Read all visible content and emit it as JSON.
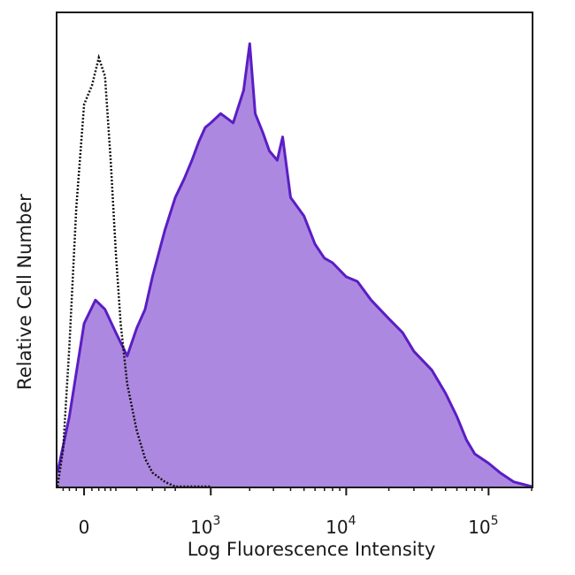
{
  "chart_data": {
    "type": "area",
    "title": "",
    "xlabel": "Log Fluorescence Intensity",
    "ylabel": "Relative Cell Number",
    "x_scale": "biexponential",
    "xlim": [
      -80,
      200000
    ],
    "ylim": [
      0,
      100
    ],
    "grid": false,
    "legend": "none",
    "x_ticks": [
      {
        "value": 0,
        "base": "0",
        "exp": ""
      },
      {
        "value": 1000,
        "base": "10",
        "exp": "3"
      },
      {
        "value": 10000,
        "base": "10",
        "exp": "4"
      },
      {
        "value": 100000,
        "base": "10",
        "exp": "5"
      }
    ],
    "series": [
      {
        "style": "filled",
        "fill_color": "#ad88e0",
        "line_color": "#5a1ec4",
        "x": [
          -80,
          -40,
          0,
          30,
          60,
          100,
          150,
          200,
          250,
          300,
          400,
          500,
          600,
          700,
          800,
          900,
          1000,
          1200,
          1500,
          1800,
          2000,
          2200,
          2500,
          2800,
          3200,
          3500,
          4000,
          5000,
          6000,
          7000,
          8000,
          10000,
          12000,
          15000,
          20000,
          25000,
          30000,
          40000,
          50000,
          60000,
          70000,
          80000,
          100000,
          120000,
          150000,
          200000
        ],
        "y": [
          3,
          15,
          35,
          40,
          38,
          33,
          28,
          34,
          38,
          45,
          55,
          62,
          66,
          70,
          74,
          77,
          78,
          80,
          78,
          85,
          95,
          80,
          76,
          72,
          70,
          75,
          62,
          58,
          52,
          49,
          48,
          45,
          44,
          40,
          36,
          33,
          29,
          25,
          20,
          15,
          10,
          7,
          5,
          3,
          1,
          0
        ]
      },
      {
        "style": "dotted",
        "line_color": "#111111",
        "x": [
          -80,
          -60,
          -40,
          -20,
          0,
          20,
          40,
          60,
          80,
          100,
          120,
          150,
          200,
          250,
          300,
          400,
          500,
          700,
          1000
        ],
        "y": [
          0,
          8,
          30,
          60,
          82,
          86,
          92,
          88,
          70,
          50,
          35,
          22,
          12,
          6,
          3,
          1,
          0,
          0,
          0
        ]
      }
    ]
  }
}
